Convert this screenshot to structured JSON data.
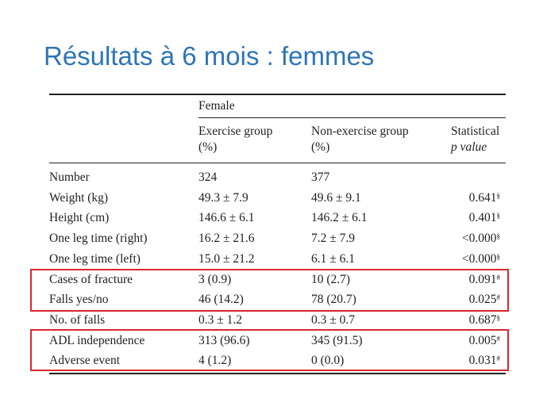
{
  "slide": {
    "title": "Résultats à 6 mois : femmes"
  },
  "table": {
    "group_header": "Female",
    "columns": [
      {
        "line1": "Exercise group",
        "line2": "(%)"
      },
      {
        "line1": "Non-exercise group",
        "line2": "(%)"
      },
      {
        "line1": "Statistical",
        "line2": "p value"
      }
    ],
    "rows": [
      {
        "label": "Number",
        "ex": "324",
        "nonex": "377",
        "p": "",
        "mark": ""
      },
      {
        "label": "Weight (kg)",
        "ex": "49.3 ± 7.9",
        "nonex": "49.6 ± 9.1",
        "p": "0.641",
        "mark": "§"
      },
      {
        "label": "Height (cm)",
        "ex": "146.6 ± 6.1",
        "nonex": "146.2 ± 6.1",
        "p": "0.401",
        "mark": "§"
      },
      {
        "label": "One leg time (right)",
        "ex": "16.2 ± 21.6",
        "nonex": "7.2 ± 7.9",
        "p": "<0.000",
        "mark": "§"
      },
      {
        "label": "One leg time (left)",
        "ex": "15.0 ± 21.2",
        "nonex": "6.1 ± 6.1",
        "p": "<0.000",
        "mark": "§"
      },
      {
        "label": "Cases of fracture",
        "ex": "3 (0.9)",
        "nonex": "10 (2.7)",
        "p": "0.091",
        "mark": "#"
      },
      {
        "label": "Falls yes/no",
        "ex": "46 (14.2)",
        "nonex": "78 (20.7)",
        "p": "0.025",
        "mark": "#"
      },
      {
        "label": "No. of falls",
        "ex": "0.3 ± 1.2",
        "nonex": "0.3 ± 0.7",
        "p": "0.687",
        "mark": "§"
      },
      {
        "label": "ADL independence",
        "ex": "313 (96.6)",
        "nonex": "345 (91.5)",
        "p": "0.005",
        "mark": "#"
      },
      {
        "label": "Adverse event",
        "ex": "4 (1.2)",
        "nonex": "0 (0.0)",
        "p": "0.031",
        "mark": "#"
      }
    ]
  },
  "highlight_color": "#d8282d",
  "title_color": "#2e75b6"
}
